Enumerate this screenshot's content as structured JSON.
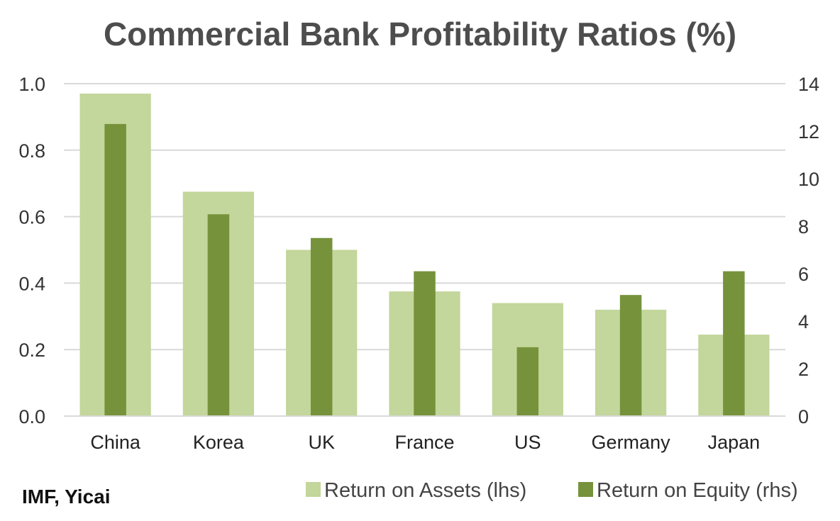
{
  "chart_data": {
    "type": "bar",
    "title": "Commercial Bank Profitability Ratios (%)",
    "categories": [
      "China",
      "Korea",
      "UK",
      "France",
      "US",
      "Germany",
      "Japan"
    ],
    "series": [
      {
        "name": "Return on Assets (lhs)",
        "axis": "left",
        "color": "#c3d69b",
        "values": [
          0.97,
          0.675,
          0.5,
          0.375,
          0.34,
          0.32,
          0.245
        ]
      },
      {
        "name": "Return on Equity (rhs)",
        "axis": "right",
        "color": "#76933c",
        "values": [
          12.3,
          8.5,
          7.5,
          6.1,
          2.9,
          5.1,
          6.1
        ]
      }
    ],
    "y_left": {
      "lim": [
        0,
        1.0
      ],
      "ticks": [
        "0.0",
        "0.2",
        "0.4",
        "0.6",
        "0.8",
        "1.0"
      ]
    },
    "y_right": {
      "lim": [
        0,
        14
      ],
      "ticks": [
        "0",
        "2",
        "4",
        "6",
        "8",
        "10",
        "12",
        "14"
      ]
    },
    "grid": true,
    "legend_position": "bottom-right"
  },
  "source": "IMF, Yicai"
}
